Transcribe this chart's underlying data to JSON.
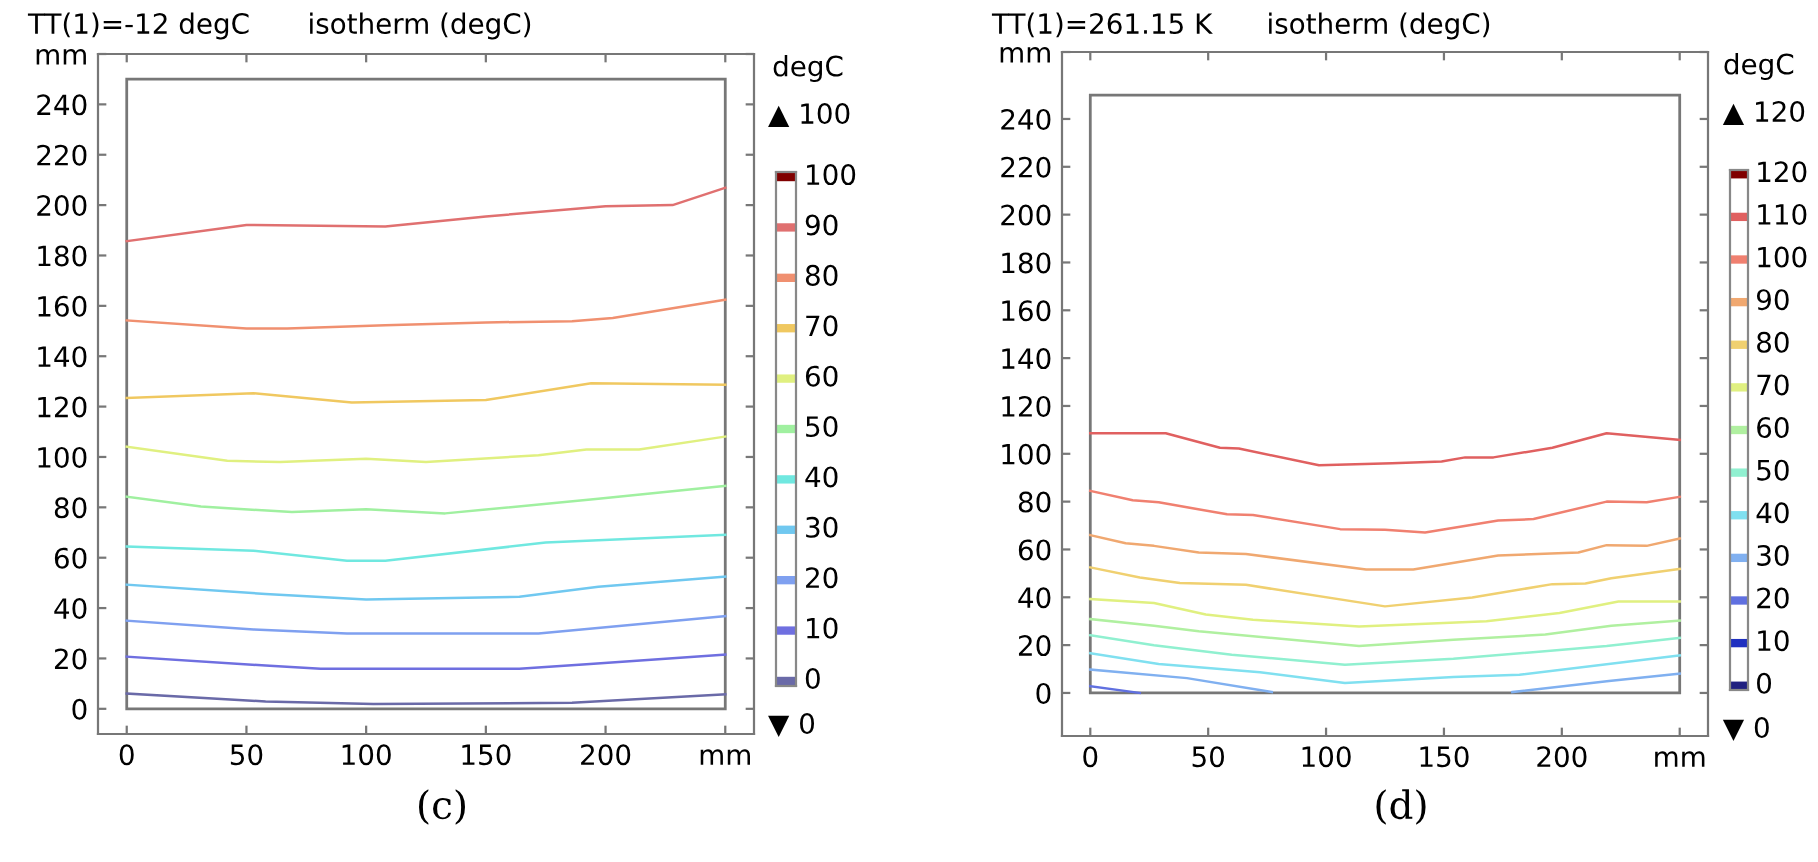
{
  "chart_data": [
    {
      "type": "line",
      "title": "isotherm (degC)",
      "subtitle": "TT(1)=-12 degC",
      "legend_title": "degC",
      "legend": "right",
      "marker": "none",
      "line_style": "solid",
      "grid": false,
      "annotations": [
        "▲ 100",
        "▼ 0",
        "(c)"
      ],
      "xlim": [
        -12,
        262
      ],
      "ylim": [
        -10,
        260
      ],
      "xticks": [
        0,
        50,
        100,
        150,
        200,
        {
          "value": 250,
          "label": "mm"
        }
      ],
      "yticks": [
        0,
        20,
        40,
        60,
        80,
        100,
        120,
        140,
        160,
        180,
        200,
        220,
        240,
        {
          "value": 260,
          "label": "mm"
        }
      ],
      "series": [
        {
          "name": "0",
          "color": "#6a6aa8",
          "x": [
            0,
            58,
            103,
            186,
            250
          ],
          "values": [
            6.1,
            2.9,
            1.9,
            2.4,
            5.8
          ]
        },
        {
          "name": "10",
          "color": "#6f6fe0",
          "x": [
            0,
            58,
            81,
            164,
            192,
            250
          ],
          "values": [
            20.7,
            17.2,
            15.9,
            15.9,
            17.7,
            21.5
          ]
        },
        {
          "name": "20",
          "color": "#7fa0f0",
          "x": [
            0,
            53,
            92,
            172,
            250
          ],
          "values": [
            35,
            31.5,
            29.9,
            29.9,
            36.8
          ]
        },
        {
          "name": "30",
          "color": "#70c8f0",
          "x": [
            0,
            58,
            100,
            164,
            197,
            250
          ],
          "values": [
            49.3,
            45.6,
            43.4,
            44.5,
            48.5,
            52.5
          ]
        },
        {
          "name": "40",
          "color": "#70e8e0",
          "x": [
            0,
            53,
            92,
            108,
            175,
            250
          ],
          "values": [
            64.4,
            62.8,
            58.8,
            58.8,
            66,
            69.1
          ]
        },
        {
          "name": "50",
          "color": "#a0f0a0",
          "x": [
            0,
            31,
            69,
            100,
            133,
            197,
            250
          ],
          "values": [
            84.2,
            80.3,
            78.1,
            79.2,
            77.6,
            83.4,
            88.5
          ]
        },
        {
          "name": "60",
          "color": "#e0f080",
          "x": [
            0,
            42,
            64,
            100,
            125,
            172,
            192,
            214,
            250
          ],
          "values": [
            104.1,
            98.5,
            98,
            99.3,
            98,
            100.7,
            103,
            103,
            108.1
          ]
        },
        {
          "name": "70",
          "color": "#f0c860",
          "x": [
            0,
            53,
            94,
            150,
            194,
            250
          ],
          "values": [
            123.4,
            125.3,
            121.6,
            122.6,
            129.3,
            128.7
          ]
        },
        {
          "name": "80",
          "color": "#f09070",
          "x": [
            0,
            50,
            67,
            108,
            150,
            186,
            203,
            250
          ],
          "values": [
            154.2,
            151,
            151,
            152.3,
            153.4,
            153.9,
            155.2,
            162.4
          ]
        },
        {
          "name": "90",
          "color": "#e07070",
          "x": [
            0,
            50,
            108,
            150,
            200,
            228,
            250
          ],
          "values": [
            185.7,
            192.1,
            191.5,
            195.5,
            199.5,
            200,
            206.9
          ]
        },
        {
          "name": "100",
          "color": "#800000"
        }
      ]
    },
    {
      "type": "line",
      "title": "isotherm (degC)",
      "subtitle": "TT(1)=261.15 K",
      "legend_title": "degC",
      "legend": "right",
      "marker": "none",
      "line_style": "solid",
      "grid": false,
      "annotations": [
        "▲ 120",
        "▼ 0",
        "(d)"
      ],
      "xlim": [
        -12,
        262
      ],
      "ylim": [
        -18,
        268
      ],
      "xticks": [
        0,
        50,
        100,
        150,
        200,
        {
          "value": 250,
          "label": "mm"
        }
      ],
      "yticks": [
        0,
        20,
        40,
        60,
        80,
        100,
        120,
        140,
        160,
        180,
        200,
        220,
        240,
        {
          "value": 268,
          "label": "mm"
        }
      ],
      "series": [
        {
          "name": "0",
          "color": "#202080"
        },
        {
          "name": "10",
          "color": "#2030c0"
        },
        {
          "name": "20",
          "color": "#6070e0",
          "x": [
            0,
            21
          ],
          "values": [
            2.8,
            0
          ]
        },
        {
          "name": "30",
          "color": "#80b0f0",
          "x": [
            0,
            41,
            77,
            120,
            179,
            220,
            250
          ],
          "values": [
            9.8,
            6.2,
            0.4,
            null,
            0.4,
            5,
            8.1
          ]
        },
        {
          "name": "40",
          "color": "#80e0f0",
          "x": [
            0,
            29,
            72,
            108,
            154,
            182,
            250
          ],
          "values": [
            16.6,
            12.1,
            8.7,
            4.2,
            6.7,
            7.6,
            15.7
          ]
        },
        {
          "name": "50",
          "color": "#90f0d0",
          "x": [
            0,
            27,
            60,
            108,
            154,
            219,
            250
          ],
          "values": [
            24.1,
            19.9,
            16,
            11.8,
            14.3,
            19.6,
            23
          ]
        },
        {
          "name": "60",
          "color": "#b0f0a0",
          "x": [
            0,
            27,
            46,
            114,
            154,
            193,
            221,
            250
          ],
          "values": [
            30.9,
            28.1,
            25.8,
            19.6,
            22.2,
            24.4,
            28.1,
            30.3
          ]
        },
        {
          "name": "70",
          "color": "#e0f080",
          "x": [
            0,
            27,
            49,
            69,
            114,
            168,
            199,
            224,
            250
          ],
          "values": [
            39.3,
            37.6,
            32.8,
            30.6,
            27.8,
            30,
            33.4,
            38.2,
            38.2
          ]
        },
        {
          "name": "80",
          "color": "#f0d070",
          "x": [
            0,
            21,
            38,
            66,
            125,
            162,
            196,
            210,
            221,
            250
          ],
          "values": [
            52.5,
            48.3,
            46,
            45.2,
            36.2,
            39.9,
            45.5,
            45.8,
            48,
            51.9
          ]
        },
        {
          "name": "90",
          "color": "#f0a870",
          "x": [
            0,
            15,
            27,
            46,
            66,
            117,
            137,
            173,
            207,
            219,
            236,
            250
          ],
          "values": [
            66,
            62.6,
            61.5,
            58.7,
            58.1,
            51.6,
            51.6,
            57.5,
            58.7,
            61.8,
            61.5,
            64.6
          ]
        },
        {
          "name": "100",
          "color": "#f08070",
          "x": [
            0,
            18,
            29,
            58,
            69,
            106,
            125,
            142,
            173,
            188,
            219,
            236,
            250
          ],
          "values": [
            84.5,
            80.6,
            79.7,
            74.7,
            74.4,
            68.5,
            68.2,
            67.1,
            72.1,
            72.7,
            80,
            79.7,
            82
          ]
        },
        {
          "name": "110",
          "color": "#e06060",
          "x": [
            0,
            32,
            55,
            63,
            97,
            128,
            149,
            159,
            171,
            196,
            219,
            250
          ],
          "values": [
            108.6,
            108.6,
            102.5,
            102.2,
            95.2,
            96,
            96.8,
            98.5,
            98.5,
            102.5,
            108.6,
            105.8
          ]
        },
        {
          "name": "120",
          "color": "#800000"
        }
      ]
    }
  ]
}
